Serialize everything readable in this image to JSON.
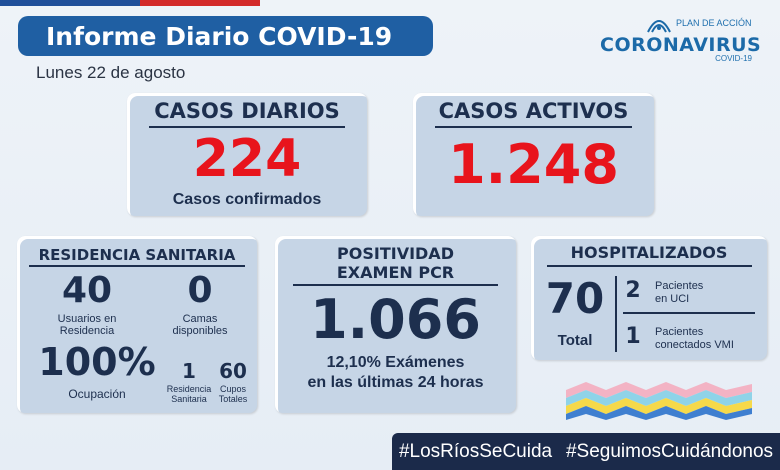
{
  "header": {
    "title": "Informe Diario COVID-19",
    "date": "Lunes 22 de agosto"
  },
  "logo": {
    "line1": "PLAN DE ACCIÓN",
    "line2": "CORONAVIRUS",
    "line3": "COVID-19"
  },
  "casos_diarios": {
    "title": "CASOS DIARIOS",
    "value": "224",
    "caption": "Casos confirmados"
  },
  "casos_activos": {
    "title": "CASOS ACTIVOS",
    "value": "1.248"
  },
  "residencia": {
    "title": "RESIDENCIA SANITARIA",
    "usuarios_value": "40",
    "usuarios_label_1": "Usuarios en",
    "usuarios_label_2": "Residencia",
    "camas_value": "0",
    "camas_label_1": "Camas",
    "camas_label_2": "disponibles",
    "ocupacion_value": "100%",
    "ocupacion_label": "Ocupación",
    "residencia_value": "1",
    "residencia_label_1": "Residencia",
    "residencia_label_2": "Sanitaria",
    "cupos_value": "60",
    "cupos_label_1": "Cupos",
    "cupos_label_2": "Totales"
  },
  "positividad": {
    "title_1": "POSITIVIDAD",
    "title_2": "EXAMEN PCR",
    "value": "1.066",
    "caption_1": "12,10% Exámenes",
    "caption_2": "en las últimas 24 horas"
  },
  "hospitalizados": {
    "title": "HOSPITALIZADOS",
    "total_value": "70",
    "total_label": "Total",
    "uci_value": "2",
    "uci_label_1": "Pacientes",
    "uci_label_2": "en UCI",
    "vmi_value": "1",
    "vmi_label_1": "Pacientes",
    "vmi_label_2": "conectados VMI"
  },
  "hashtags": [
    "#LosRíosSeCuida",
    "#SeguimosCuidándonos"
  ],
  "colors": {
    "title_bg": "#1f5fa3",
    "card_bg": "#c6d5e6",
    "accent_red": "#e8141c",
    "navy": "#1d2f4e"
  }
}
